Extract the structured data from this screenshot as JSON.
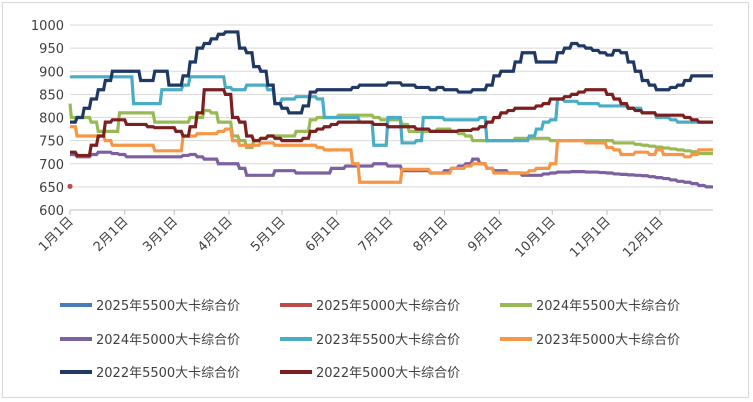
{
  "chart_data": {
    "type": "line",
    "title": "",
    "xlabel": "",
    "ylabel": "",
    "ylim": [
      600,
      1000
    ],
    "yticks": [
      600,
      650,
      700,
      750,
      800,
      850,
      900,
      950,
      1000
    ],
    "xlim": [
      1,
      365
    ],
    "xticks": [
      {
        "label": "1月1日",
        "day": 1
      },
      {
        "label": "2月1日",
        "day": 32
      },
      {
        "label": "3月1日",
        "day": 60
      },
      {
        "label": "4月1日",
        "day": 91
      },
      {
        "label": "5月1日",
        "day": 121
      },
      {
        "label": "6月1日",
        "day": 152
      },
      {
        "label": "7月1日",
        "day": 182
      },
      {
        "label": "8月1日",
        "day": 213
      },
      {
        "label": "9月1日",
        "day": 244
      },
      {
        "label": "10月1日",
        "day": 274
      },
      {
        "label": "11月1日",
        "day": 305
      },
      {
        "label": "12月1日",
        "day": 335
      }
    ],
    "grid": "horizontal",
    "legend_position": "bottom",
    "series": [
      {
        "name": "2025年5500大卡综合价",
        "color": "#4a7ebb",
        "x": [
          1,
          2
        ],
        "y": [
          651,
          651
        ]
      },
      {
        "name": "2025年5000大卡综合价",
        "color": "#be4b48",
        "x": [
          1,
          2
        ],
        "y": [
          651,
          651
        ]
      },
      {
        "name": "2024年5500大卡综合价",
        "color": "#98b954",
        "x": [
          1,
          4,
          8,
          12,
          16,
          20,
          24,
          28,
          32,
          36,
          40,
          44,
          48,
          52,
          56,
          60,
          64,
          68,
          72,
          76,
          80,
          84,
          88,
          92,
          96,
          100,
          104,
          108,
          112,
          116,
          120,
          124,
          128,
          132,
          136,
          140,
          144,
          148,
          152,
          156,
          160,
          164,
          168,
          172,
          176,
          180,
          184,
          188,
          192,
          196,
          200,
          204,
          208,
          212,
          216,
          220,
          224,
          228,
          232,
          236,
          240,
          244,
          248,
          252,
          256,
          260,
          264,
          268,
          272,
          276,
          280,
          284,
          288,
          292,
          296,
          300,
          304,
          308,
          312,
          316,
          320,
          324,
          328,
          332,
          336,
          340,
          344,
          348,
          352,
          356,
          360,
          365
        ],
        "y": [
          830,
          800,
          800,
          800,
          790,
          770,
          770,
          770,
          810,
          810,
          810,
          810,
          810,
          790,
          790,
          790,
          790,
          790,
          800,
          800,
          815,
          810,
          790,
          790,
          760,
          750,
          735,
          750,
          755,
          760,
          760,
          760,
          760,
          770,
          770,
          795,
          800,
          800,
          800,
          805,
          805,
          805,
          805,
          805,
          800,
          795,
          795,
          795,
          785,
          770,
          770,
          770,
          770,
          775,
          775,
          770,
          765,
          760,
          750,
          750,
          750,
          750,
          750,
          750,
          755,
          755,
          755,
          755,
          755,
          750,
          750,
          750,
          750,
          750,
          750,
          750,
          750,
          750,
          745,
          745,
          745,
          742,
          740,
          738,
          736,
          734,
          732,
          730,
          728,
          726,
          722,
          722
        ]
      },
      {
        "name": "2024年5000大卡综合价",
        "color": "#7d60a0",
        "x": [
          1,
          4,
          8,
          12,
          16,
          20,
          24,
          28,
          32,
          36,
          40,
          44,
          48,
          52,
          56,
          60,
          64,
          68,
          72,
          76,
          80,
          84,
          88,
          92,
          96,
          100,
          104,
          108,
          112,
          116,
          120,
          124,
          128,
          132,
          136,
          140,
          144,
          148,
          152,
          156,
          160,
          164,
          168,
          172,
          176,
          180,
          184,
          188,
          192,
          196,
          200,
          204,
          208,
          212,
          216,
          220,
          224,
          228,
          232,
          236,
          240,
          244,
          248,
          252,
          256,
          260,
          264,
          268,
          272,
          276,
          280,
          284,
          288,
          292,
          296,
          300,
          304,
          308,
          312,
          316,
          320,
          324,
          328,
          332,
          336,
          340,
          344,
          348,
          352,
          356,
          360,
          365
        ],
        "y": [
          720,
          720,
          715,
          715,
          720,
          725,
          725,
          722,
          720,
          715,
          715,
          715,
          715,
          715,
          715,
          715,
          715,
          718,
          720,
          715,
          710,
          710,
          700,
          700,
          700,
          690,
          675,
          675,
          675,
          675,
          685,
          685,
          685,
          680,
          680,
          680,
          680,
          680,
          690,
          690,
          695,
          695,
          695,
          695,
          700,
          700,
          695,
          695,
          685,
          685,
          685,
          685,
          680,
          680,
          685,
          690,
          695,
          700,
          710,
          700,
          690,
          685,
          685,
          680,
          680,
          675,
          675,
          675,
          678,
          680,
          682,
          682,
          683,
          683,
          682,
          682,
          681,
          680,
          678,
          677,
          676,
          675,
          674,
          672,
          670,
          668,
          665,
          662,
          660,
          657,
          653,
          650
        ]
      },
      {
        "name": "2023年5500大卡综合价",
        "color": "#4bacc6",
        "x": [
          1,
          4,
          8,
          12,
          16,
          20,
          24,
          28,
          32,
          36,
          40,
          44,
          48,
          52,
          56,
          60,
          64,
          68,
          72,
          76,
          80,
          84,
          88,
          92,
          96,
          100,
          104,
          108,
          112,
          116,
          120,
          124,
          128,
          132,
          136,
          140,
          144,
          148,
          152,
          156,
          160,
          164,
          168,
          172,
          176,
          180,
          184,
          188,
          192,
          196,
          200,
          204,
          208,
          212,
          216,
          220,
          224,
          228,
          232,
          236,
          240,
          244,
          248,
          252,
          256,
          260,
          264,
          268,
          272,
          276,
          280,
          284,
          288,
          292,
          296,
          300,
          304,
          308,
          312,
          316,
          320,
          324,
          328,
          332,
          336,
          340,
          344,
          348,
          352,
          356,
          360,
          365
        ],
        "y": [
          887,
          888,
          888,
          888,
          888,
          888,
          888,
          888,
          888,
          888,
          830,
          830,
          830,
          830,
          860,
          860,
          860,
          870,
          888,
          888,
          888,
          888,
          888,
          865,
          860,
          860,
          870,
          870,
          870,
          860,
          830,
          840,
          840,
          845,
          845,
          845,
          840,
          800,
          800,
          800,
          800,
          800,
          790,
          790,
          740,
          740,
          800,
          800,
          745,
          745,
          750,
          800,
          800,
          800,
          795,
          795,
          795,
          795,
          795,
          800,
          750,
          750,
          750,
          750,
          750,
          750,
          760,
          775,
          790,
          795,
          840,
          835,
          835,
          830,
          830,
          830,
          825,
          825,
          825,
          825,
          820,
          820,
          810,
          810,
          800,
          800,
          795,
          790,
          790,
          790,
          790,
          790
        ]
      },
      {
        "name": "2023年5000大卡综合价",
        "color": "#f79646",
        "x": [
          1,
          4,
          8,
          12,
          16,
          20,
          24,
          28,
          32,
          36,
          40,
          44,
          48,
          52,
          56,
          60,
          64,
          68,
          72,
          76,
          80,
          84,
          88,
          92,
          96,
          100,
          104,
          108,
          112,
          116,
          120,
          124,
          128,
          132,
          136,
          140,
          144,
          148,
          152,
          156,
          160,
          164,
          168,
          172,
          176,
          180,
          184,
          188,
          192,
          196,
          200,
          204,
          208,
          212,
          216,
          220,
          224,
          228,
          232,
          236,
          240,
          244,
          248,
          252,
          256,
          260,
          264,
          268,
          272,
          276,
          280,
          284,
          288,
          292,
          296,
          300,
          304,
          308,
          312,
          316,
          320,
          324,
          328,
          332,
          336,
          340,
          344,
          348,
          352,
          356,
          360,
          365
        ],
        "y": [
          780,
          780,
          760,
          760,
          760,
          760,
          750,
          740,
          740,
          740,
          740,
          740,
          740,
          728,
          728,
          728,
          728,
          760,
          760,
          765,
          765,
          765,
          770,
          775,
          750,
          740,
          740,
          740,
          745,
          745,
          740,
          740,
          740,
          740,
          740,
          740,
          735,
          730,
          730,
          730,
          730,
          700,
          660,
          660,
          660,
          660,
          660,
          660,
          688,
          688,
          688,
          688,
          680,
          680,
          680,
          690,
          690,
          695,
          700,
          700,
          690,
          680,
          680,
          680,
          680,
          680,
          685,
          690,
          690,
          700,
          750,
          750,
          750,
          750,
          745,
          745,
          745,
          735,
          730,
          720,
          720,
          725,
          725,
          720,
          730,
          720,
          720,
          720,
          715,
          720,
          730,
          730
        ]
      },
      {
        "name": "2022年5500大卡综合价",
        "color": "#1f3864",
        "x": [
          1,
          4,
          8,
          12,
          16,
          20,
          24,
          28,
          32,
          36,
          40,
          44,
          48,
          52,
          56,
          60,
          64,
          68,
          72,
          76,
          80,
          84,
          88,
          92,
          96,
          100,
          104,
          108,
          112,
          116,
          120,
          124,
          128,
          132,
          136,
          140,
          144,
          148,
          152,
          156,
          160,
          164,
          168,
          172,
          176,
          180,
          184,
          188,
          192,
          196,
          200,
          204,
          208,
          212,
          216,
          220,
          224,
          228,
          232,
          236,
          240,
          244,
          248,
          252,
          256,
          260,
          264,
          268,
          272,
          276,
          280,
          284,
          288,
          292,
          296,
          300,
          304,
          308,
          312,
          316,
          320,
          324,
          328,
          332,
          336,
          340,
          344,
          348,
          352,
          356,
          360,
          365
        ],
        "y": [
          790,
          790,
          800,
          820,
          840,
          860,
          880,
          900,
          900,
          900,
          900,
          880,
          880,
          900,
          900,
          870,
          870,
          890,
          920,
          950,
          960,
          970,
          980,
          985,
          985,
          950,
          940,
          910,
          900,
          870,
          830,
          820,
          810,
          810,
          825,
          855,
          860,
          860,
          860,
          860,
          860,
          865,
          870,
          870,
          870,
          870,
          875,
          875,
          870,
          870,
          865,
          865,
          860,
          865,
          860,
          860,
          855,
          855,
          860,
          860,
          870,
          890,
          900,
          900,
          920,
          940,
          940,
          920,
          920,
          920,
          940,
          950,
          960,
          955,
          950,
          945,
          940,
          935,
          945,
          940,
          920,
          900,
          880,
          870,
          860,
          860,
          865,
          870,
          880,
          890,
          890,
          890
        ]
      },
      {
        "name": "2022年5000大卡综合价",
        "color": "#7b2020",
        "x": [
          1,
          4,
          8,
          12,
          16,
          20,
          24,
          28,
          32,
          36,
          40,
          44,
          48,
          52,
          56,
          60,
          64,
          68,
          72,
          76,
          80,
          84,
          88,
          92,
          96,
          100,
          104,
          108,
          112,
          116,
          120,
          124,
          128,
          132,
          136,
          140,
          144,
          148,
          152,
          156,
          160,
          164,
          168,
          172,
          176,
          180,
          184,
          188,
          192,
          196,
          200,
          204,
          208,
          212,
          216,
          220,
          224,
          228,
          232,
          236,
          240,
          244,
          248,
          252,
          256,
          260,
          264,
          268,
          272,
          276,
          280,
          284,
          288,
          292,
          296,
          300,
          304,
          308,
          312,
          316,
          320,
          324,
          328,
          332,
          336,
          340,
          344,
          348,
          352,
          356,
          360,
          365
        ],
        "y": [
          725,
          725,
          718,
          718,
          740,
          760,
          790,
          795,
          795,
          785,
          785,
          785,
          780,
          778,
          778,
          778,
          770,
          760,
          780,
          810,
          860,
          860,
          860,
          850,
          800,
          790,
          760,
          750,
          755,
          760,
          755,
          750,
          750,
          750,
          755,
          770,
          775,
          780,
          785,
          790,
          790,
          790,
          790,
          790,
          785,
          785,
          780,
          780,
          780,
          780,
          775,
          775,
          770,
          770,
          770,
          770,
          772,
          772,
          775,
          780,
          790,
          800,
          810,
          815,
          820,
          820,
          820,
          825,
          830,
          840,
          840,
          845,
          850,
          855,
          860,
          860,
          860,
          850,
          840,
          830,
          820,
          815,
          810,
          810,
          805,
          805,
          805,
          805,
          800,
          795,
          790,
          790
        ]
      }
    ]
  }
}
